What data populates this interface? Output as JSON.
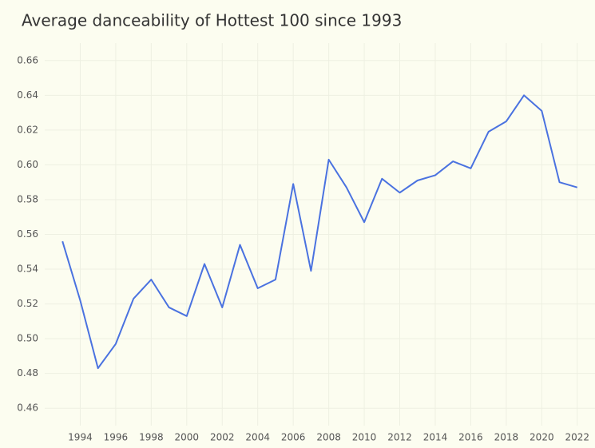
{
  "chart_data": {
    "type": "line",
    "title": "Average danceability of Hottest 100 since 1993",
    "x": [
      1993,
      1994,
      1995,
      1996,
      1997,
      1998,
      1999,
      2000,
      2001,
      2002,
      2003,
      2004,
      2005,
      2006,
      2007,
      2008,
      2009,
      2010,
      2011,
      2012,
      2013,
      2014,
      2015,
      2016,
      2017,
      2018,
      2019,
      2020,
      2021,
      2022
    ],
    "series": [
      {
        "color": "#4a72e0",
        "values": [
          0.556,
          0.522,
          0.483,
          0.497,
          0.523,
          0.534,
          0.518,
          0.513,
          0.543,
          0.518,
          0.554,
          0.529,
          0.534,
          0.589,
          0.539,
          0.603,
          0.587,
          0.567,
          0.592,
          0.584,
          0.591,
          0.594,
          0.602,
          0.598,
          0.619,
          0.625,
          0.64,
          0.631,
          0.59,
          0.587
        ]
      }
    ],
    "xlim": [
      1992,
      2023
    ],
    "xticks": [
      1994,
      1996,
      1998,
      2000,
      2002,
      2004,
      2006,
      2008,
      2010,
      2012,
      2014,
      2016,
      2018,
      2020,
      2022
    ],
    "ylim": [
      0.45,
      0.67
    ],
    "yticks": [
      0.46,
      0.48,
      {
        "value": 0.5,
        "label": "0.50"
      },
      0.52,
      0.54,
      0.56,
      0.58,
      {
        "value": 0.6,
        "label": "0.60"
      },
      0.62,
      0.64,
      0.66
    ],
    "grid": true
  }
}
